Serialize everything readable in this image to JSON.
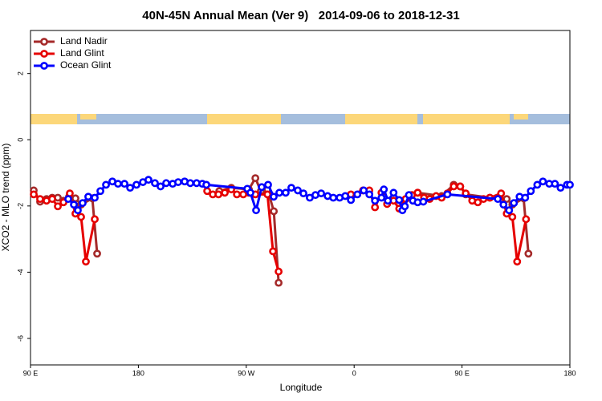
{
  "chart_data": {
    "type": "line",
    "title": "40N-45N Annual Mean (Ver 9)   2014-09-06 to 2018-12-31",
    "x_label": "Longitude",
    "y_label": "XCO2 - MLO trend (ppm)",
    "xlim": [
      90,
      540
    ],
    "ylim": [
      -6.8,
      3.3
    ],
    "xticks": [
      {
        "value": 90,
        "label": "90 E"
      },
      180,
      {
        "value": 270,
        "label": "90 W"
      },
      {
        "value": 360,
        "label": "0"
      },
      {
        "value": 450,
        "label": "90 E"
      },
      {
        "value": 540,
        "label": "180"
      }
    ],
    "yticks": [
      -6,
      -4,
      -2,
      0,
      2
    ],
    "legend": "top-left",
    "series": [
      {
        "name": "Land Nadir",
        "color": "#a52a2a",
        "x": [
          92.7,
          98.0,
          103.4,
          108.1,
          112.8,
          117.5,
          122.2,
          127.5,
          132.2,
          141.6,
          145.6,
          null,
          247.5,
          257.5,
          272.2,
          277.6,
          282.2,
          287.7,
          293.0,
          297.0,
          null,
          413.0,
          433.0,
          443.1,
          448.5,
          453.1,
          473.2,
          487.3,
          492.0,
          501.4,
          505.4
        ],
        "values": [
          -1.53,
          -1.87,
          -1.79,
          -1.75,
          -1.75,
          -1.84,
          -1.72,
          -1.77,
          -1.96,
          -1.77,
          -3.44,
          null,
          -1.55,
          -1.45,
          -1.5,
          -1.16,
          -1.55,
          -1.5,
          -2.16,
          -4.32,
          null,
          -1.6,
          -1.7,
          -1.36,
          -1.41,
          -1.65,
          -1.75,
          -1.79,
          -1.96,
          -1.77,
          -3.44
        ]
      },
      {
        "name": "Land Glint",
        "color": "#e60000",
        "x": [
          92.7,
          98.0,
          103.4,
          108.1,
          112.8,
          117.5,
          122.8,
          127.5,
          132.2,
          136.2,
          143.6,
          null,
          237.4,
          242.1,
          246.8,
          252.1,
          257.5,
          262.2,
          267.5,
          272.2,
          277.6,
          287.7,
          292.3,
          297.0,
          null,
          357.3,
          367.4,
          372.7,
          377.4,
          382.8,
          387.5,
          392.9,
          397.6,
          403.0,
          408.2,
          413.0,
          418.3,
          423.0,
          428.4,
          433.0,
          437.8,
          443.1,
          448.5,
          453.1,
          458.5,
          463.2,
          467.9,
          473.2,
          482.6,
          487.3,
          492.0,
          496.0,
          503.4
        ],
        "values": [
          -1.65,
          -1.79,
          -1.84,
          -1.79,
          -2.01,
          -1.89,
          -1.62,
          -2.23,
          -2.33,
          -3.68,
          -2.4,
          null,
          -1.55,
          -1.65,
          -1.65,
          -1.6,
          -1.5,
          -1.65,
          -1.65,
          -1.6,
          -1.65,
          -1.65,
          -3.37,
          -3.98,
          null,
          -1.65,
          -1.53,
          -1.53,
          -2.04,
          -1.6,
          -1.94,
          -1.84,
          -2.08,
          -1.79,
          -1.67,
          -1.6,
          -1.75,
          -1.79,
          -1.7,
          -1.75,
          -1.62,
          -1.41,
          -1.41,
          -1.62,
          -1.84,
          -1.89,
          -1.79,
          -1.75,
          -1.62,
          -2.23,
          -2.33,
          -3.68,
          -2.4
        ]
      },
      {
        "name": "Ocean Glint",
        "color": "#0000ff",
        "x": [
          121.5,
          126.2,
          129.5,
          133.5,
          138.2,
          143.6,
          148.3,
          153.0,
          158.3,
          163.0,
          168.4,
          173.1,
          178.4,
          183.8,
          188.4,
          193.8,
          198.5,
          203.2,
          208.6,
          213.2,
          218.6,
          223.3,
          228.6,
          233.3,
          236.7,
          270.9,
          273.5,
          278.2,
          282.9,
          288.2,
          292.9,
          297.6,
          302.9,
          307.6,
          313.0,
          317.7,
          323.0,
          327.7,
          332.5,
          337.9,
          342.6,
          347.9,
          352.6,
          357.3,
          362.7,
          368.0,
          372.7,
          377.4,
          382.8,
          384.8,
          388.2,
          392.9,
          397.6,
          400.3,
          402.3,
          405.7,
          409.0,
          413.0,
          417.7,
          437.8,
          479.9,
          484.6,
          489.3,
          493.3,
          498.0,
          502.7,
          507.4,
          512.8,
          517.5,
          522.8,
          527.5,
          532.2,
          537.6,
          540
        ],
        "values": [
          -1.79,
          -1.96,
          -2.13,
          -1.91,
          -1.72,
          -1.75,
          -1.55,
          -1.36,
          -1.26,
          -1.33,
          -1.33,
          -1.45,
          -1.36,
          -1.28,
          -1.21,
          -1.31,
          -1.41,
          -1.31,
          -1.33,
          -1.28,
          -1.26,
          -1.31,
          -1.31,
          -1.33,
          -1.36,
          -1.48,
          -1.6,
          -2.13,
          -1.43,
          -1.36,
          -1.72,
          -1.6,
          -1.6,
          -1.45,
          -1.53,
          -1.62,
          -1.75,
          -1.67,
          -1.62,
          -1.7,
          -1.75,
          -1.75,
          -1.7,
          -1.82,
          -1.65,
          -1.53,
          -1.65,
          -1.84,
          -1.75,
          -1.5,
          -1.84,
          -1.6,
          -1.82,
          -2.13,
          -2.01,
          -1.67,
          -1.84,
          -1.89,
          -1.87,
          -1.65,
          -1.79,
          -1.96,
          -2.13,
          -1.91,
          -1.72,
          -1.75,
          -1.55,
          -1.36,
          -1.26,
          -1.33,
          -1.33,
          -1.45,
          -1.36,
          -1.36
        ]
      }
    ]
  }
}
